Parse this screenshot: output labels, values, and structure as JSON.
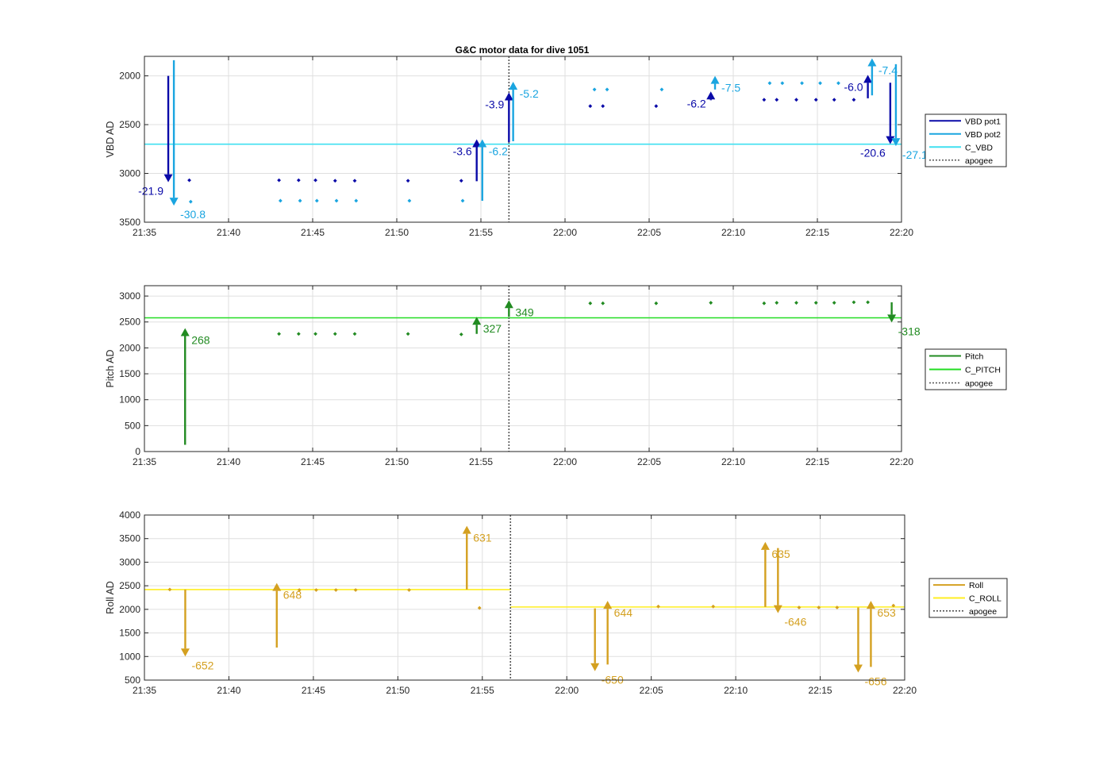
{
  "title": "G&C motor data for dive 1051",
  "colors": {
    "vbd_pot1": "#0a0aa8",
    "vbd_pot2": "#1aa5e0",
    "c_vbd": "#40e0f0",
    "pitch": "#228b22",
    "c_pitch": "#22dd22",
    "roll": "#d4a020",
    "c_roll": "#ffee22",
    "apogee": "#555555"
  },
  "chart_data": [
    {
      "type": "scatter",
      "ylabel": "VBD AD",
      "ylim": [
        1800,
        3500
      ],
      "y_reversed": true,
      "yticks": [
        2000,
        2500,
        3000,
        3500
      ],
      "xlim": [
        "21:35",
        "22:20"
      ],
      "xticks": [
        "21:35",
        "21:40",
        "21:45",
        "21:50",
        "21:55",
        "22:00",
        "22:05",
        "22:10",
        "22:15",
        "22:20"
      ],
      "grid": true,
      "legend": {
        "placement": "outside-right",
        "entries": [
          {
            "label": "VBD pot1",
            "color_key": "vbd_pot1",
            "style": "solid"
          },
          {
            "label": "VBD pot2",
            "color_key": "vbd_pot2",
            "style": "solid"
          },
          {
            "label": "C_VBD",
            "color_key": "c_vbd",
            "style": "solid"
          },
          {
            "label": "apogee",
            "color_key": "apogee",
            "style": "dotted"
          }
        ]
      },
      "apogee_x": "21:56:40",
      "reference_lines": [
        {
          "color_key": "c_vbd",
          "segments": [
            {
              "x0": "21:35",
              "x1": "22:20",
              "y": 2700
            }
          ]
        }
      ],
      "series": [
        {
          "color_key": "vbd_pot1",
          "points": [
            {
              "x": "21:37:40",
              "y": 3070
            },
            {
              "x": "21:43",
              "y": 3070
            },
            {
              "x": "21:44:10",
              "y": 3070
            },
            {
              "x": "21:45:10",
              "y": 3070
            },
            {
              "x": "21:46:20",
              "y": 3075
            },
            {
              "x": "21:47:30",
              "y": 3075
            },
            {
              "x": "21:50:40",
              "y": 3075
            },
            {
              "x": "21:53:50",
              "y": 3075
            },
            {
              "x": "22:01:30",
              "y": 2310
            },
            {
              "x": "22:02:15",
              "y": 2310
            },
            {
              "x": "22:05:25",
              "y": 2310
            },
            {
              "x": "22:11:50",
              "y": 2245
            },
            {
              "x": "22:12:35",
              "y": 2245
            },
            {
              "x": "22:13:45",
              "y": 2245
            },
            {
              "x": "22:14:55",
              "y": 2245
            },
            {
              "x": "22:16:00",
              "y": 2245
            },
            {
              "x": "22:17:10",
              "y": 2245
            }
          ]
        },
        {
          "color_key": "vbd_pot2",
          "points": [
            {
              "x": "21:37:45",
              "y": 3290
            },
            {
              "x": "21:43:05",
              "y": 3280
            },
            {
              "x": "21:44:15",
              "y": 3280
            },
            {
              "x": "21:45:15",
              "y": 3280
            },
            {
              "x": "21:46:25",
              "y": 3280
            },
            {
              "x": "21:47:35",
              "y": 3280
            },
            {
              "x": "21:50:45",
              "y": 3280
            },
            {
              "x": "21:53:55",
              "y": 3280
            },
            {
              "x": "22:01:45",
              "y": 2140
            },
            {
              "x": "22:02:30",
              "y": 2140
            },
            {
              "x": "22:05:45",
              "y": 2140
            },
            {
              "x": "22:12:10",
              "y": 2075
            },
            {
              "x": "22:12:55",
              "y": 2075
            },
            {
              "x": "22:14:05",
              "y": 2075
            },
            {
              "x": "22:15:10",
              "y": 2075
            },
            {
              "x": "22:16:15",
              "y": 2075
            }
          ]
        }
      ],
      "arrows": [
        {
          "x": "21:36:25",
          "y0": 2000,
          "y1": 3090,
          "color_key": "vbd_pot1",
          "label": "-21.9",
          "label_side": "left"
        },
        {
          "x": "21:36:45",
          "y0": 1840,
          "y1": 3330,
          "color_key": "vbd_pot2",
          "label": "-30.8",
          "label_side": "right"
        },
        {
          "x": "21:54:45",
          "y0": 3080,
          "y1": 2650,
          "color_key": "vbd_pot1",
          "label": "-3.6",
          "label_side": "left"
        },
        {
          "x": "21:55:05",
          "y0": 3280,
          "y1": 2650,
          "color_key": "vbd_pot2",
          "label": "-6.2",
          "label_side": "right"
        },
        {
          "x": "21:56:40",
          "y0": 2680,
          "y1": 2170,
          "color_key": "vbd_pot1",
          "label": "-3.9",
          "label_side": "left"
        },
        {
          "x": "21:56:55",
          "y0": 2670,
          "y1": 2060,
          "color_key": "vbd_pot2",
          "label": "-5.2",
          "label_side": "right"
        },
        {
          "x": "22:08:40",
          "y0": 2250,
          "y1": 2160,
          "color_key": "vbd_pot1",
          "label": "-6.2",
          "label_side": "left"
        },
        {
          "x": "22:08:55",
          "y0": 2140,
          "y1": 2000,
          "color_key": "vbd_pot2",
          "label": "-7.5",
          "label_side": "right"
        },
        {
          "x": "22:18:00",
          "y0": 2230,
          "y1": 1990,
          "color_key": "vbd_pot1",
          "label": "-6.0",
          "label_side": "left"
        },
        {
          "x": "22:18:15",
          "y0": 2200,
          "y1": 1820,
          "color_key": "vbd_pot2",
          "label": "-7.4",
          "label_side": "right"
        },
        {
          "x": "22:19:20",
          "y0": 2070,
          "y1": 2700,
          "color_key": "vbd_pot1",
          "label": "-20.6",
          "label_side": "left"
        },
        {
          "x": "22:19:40",
          "y0": 1880,
          "y1": 2720,
          "color_key": "vbd_pot2",
          "label": "-27.1",
          "label_side": "right"
        }
      ]
    },
    {
      "type": "scatter",
      "ylabel": "Pitch AD",
      "ylim": [
        0,
        3200
      ],
      "yticks": [
        0,
        500,
        1000,
        1500,
        2000,
        2500,
        3000
      ],
      "xlim": [
        "21:35",
        "22:20"
      ],
      "xticks": [
        "21:35",
        "21:40",
        "21:45",
        "21:50",
        "21:55",
        "22:00",
        "22:05",
        "22:10",
        "22:15",
        "22:20"
      ],
      "grid": true,
      "legend": {
        "placement": "outside-right",
        "entries": [
          {
            "label": "Pitch",
            "color_key": "pitch",
            "style": "solid"
          },
          {
            "label": "C_PITCH",
            "color_key": "c_pitch",
            "style": "solid"
          },
          {
            "label": "apogee",
            "color_key": "apogee",
            "style": "dotted"
          }
        ]
      },
      "apogee_x": "21:56:40",
      "reference_lines": [
        {
          "color_key": "c_pitch",
          "segments": [
            {
              "x0": "21:35",
              "x1": "22:20",
              "y": 2580
            }
          ]
        }
      ],
      "series": [
        {
          "color_key": "pitch",
          "points": [
            {
              "x": "21:43",
              "y": 2270
            },
            {
              "x": "21:44:10",
              "y": 2270
            },
            {
              "x": "21:45:10",
              "y": 2270
            },
            {
              "x": "21:46:20",
              "y": 2270
            },
            {
              "x": "21:47:30",
              "y": 2270
            },
            {
              "x": "21:50:40",
              "y": 2270
            },
            {
              "x": "21:53:50",
              "y": 2260
            },
            {
              "x": "22:01:30",
              "y": 2860
            },
            {
              "x": "22:02:15",
              "y": 2860
            },
            {
              "x": "22:05:25",
              "y": 2860
            },
            {
              "x": "22:08:40",
              "y": 2870
            },
            {
              "x": "22:11:50",
              "y": 2860
            },
            {
              "x": "22:12:35",
              "y": 2870
            },
            {
              "x": "22:13:45",
              "y": 2870
            },
            {
              "x": "22:14:55",
              "y": 2870
            },
            {
              "x": "22:16:00",
              "y": 2870
            },
            {
              "x": "22:17:10",
              "y": 2880
            },
            {
              "x": "22:18:00",
              "y": 2880
            }
          ]
        }
      ],
      "arrows": [
        {
          "x": "21:37:25",
          "y0": 130,
          "y1": 2380,
          "color_key": "pitch",
          "label": "268",
          "label_side": "right"
        },
        {
          "x": "21:54:45",
          "y0": 2270,
          "y1": 2600,
          "color_key": "pitch",
          "label": "327",
          "label_side": "right"
        },
        {
          "x": "21:56:40",
          "y0": 2600,
          "y1": 2920,
          "color_key": "pitch",
          "label": "349",
          "label_side": "right"
        },
        {
          "x": "22:19:25",
          "y0": 2880,
          "y1": 2490,
          "color_key": "pitch",
          "label": "-318",
          "label_side": "right"
        }
      ]
    },
    {
      "type": "scatter",
      "ylabel": "Roll AD",
      "ylim": [
        500,
        4000
      ],
      "yticks": [
        500,
        1000,
        1500,
        2000,
        2500,
        3000,
        3500,
        4000
      ],
      "xlim": [
        "21:35",
        "22:20"
      ],
      "xticks": [
        "21:35",
        "21:40",
        "21:45",
        "21:50",
        "21:55",
        "22:00",
        "22:05",
        "22:10",
        "22:15",
        "22:20"
      ],
      "grid": true,
      "legend": {
        "placement": "outside-right",
        "entries": [
          {
            "label": "Roll",
            "color_key": "roll",
            "style": "solid"
          },
          {
            "label": "C_ROLL",
            "color_key": "c_roll",
            "style": "solid"
          },
          {
            "label": "apogee",
            "color_key": "apogee",
            "style": "dotted"
          }
        ]
      },
      "apogee_x": "21:56:40",
      "reference_lines": [
        {
          "color_key": "c_roll",
          "segments": [
            {
              "x0": "21:35",
              "x1": "21:56:40",
              "y": 2420
            },
            {
              "x0": "21:56:40",
              "x1": "22:20",
              "y": 2050
            }
          ]
        }
      ],
      "series": [
        {
          "color_key": "roll",
          "points": [
            {
              "x": "21:36:30",
              "y": 2420
            },
            {
              "x": "21:44:10",
              "y": 2410
            },
            {
              "x": "21:45:10",
              "y": 2410
            },
            {
              "x": "21:46:20",
              "y": 2410
            },
            {
              "x": "21:47:30",
              "y": 2410
            },
            {
              "x": "21:50:40",
              "y": 2410
            },
            {
              "x": "21:54:50",
              "y": 2030
            },
            {
              "x": "22:05:25",
              "y": 2060
            },
            {
              "x": "22:08:40",
              "y": 2060
            },
            {
              "x": "22:13:45",
              "y": 2040
            },
            {
              "x": "22:14:55",
              "y": 2040
            },
            {
              "x": "22:16:00",
              "y": 2040
            },
            {
              "x": "22:19:20",
              "y": 2080
            }
          ]
        }
      ],
      "arrows": [
        {
          "x": "21:37:25",
          "y0": 2420,
          "y1": 1000,
          "color_key": "roll",
          "label": "-652",
          "label_side": "right"
        },
        {
          "x": "21:42:50",
          "y0": 1190,
          "y1": 2560,
          "color_key": "roll",
          "label": "648",
          "label_side": "right"
        },
        {
          "x": "21:54:05",
          "y0": 2420,
          "y1": 3770,
          "color_key": "roll",
          "label": "631",
          "label_side": "right"
        },
        {
          "x": "22:01:40",
          "y0": 2020,
          "y1": 690,
          "color_key": "roll",
          "label": "-650",
          "label_side": "right"
        },
        {
          "x": "22:02:25",
          "y0": 830,
          "y1": 2180,
          "color_key": "roll",
          "label": "644",
          "label_side": "right"
        },
        {
          "x": "22:11:45",
          "y0": 2050,
          "y1": 3430,
          "color_key": "roll",
          "label": "635",
          "label_side": "right"
        },
        {
          "x": "22:12:30",
          "y0": 3300,
          "y1": 1920,
          "color_key": "roll",
          "label": "-646",
          "label_side": "right"
        },
        {
          "x": "22:17:15",
          "y0": 2040,
          "y1": 660,
          "color_key": "roll",
          "label": "-656",
          "label_side": "right"
        },
        {
          "x": "22:18:00",
          "y0": 780,
          "y1": 2180,
          "color_key": "roll",
          "label": "653",
          "label_side": "right"
        }
      ]
    }
  ]
}
